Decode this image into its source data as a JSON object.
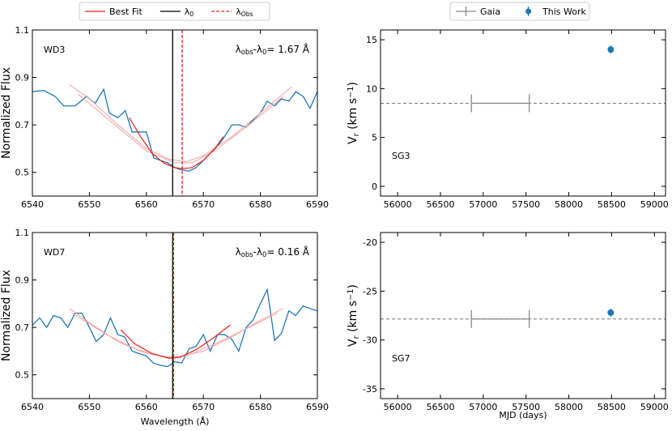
{
  "chart_data": [
    {
      "type": "line",
      "label": "WD3",
      "annotation": [
        {
          "t": "λ"
        },
        {
          "t": "obs",
          "pos": "sub"
        },
        {
          "t": "-λ"
        },
        {
          "t": "0",
          "pos": "sub"
        },
        {
          "t": "= 1.67 Å"
        }
      ],
      "ylabel": [
        {
          "t": "Normalized Flux"
        }
      ],
      "xlim": [
        6540,
        6590
      ],
      "xticks": [
        6540,
        6550,
        6560,
        6570,
        6580,
        6590
      ],
      "ylim": [
        0.4,
        1.1
      ],
      "yticks": [
        0.5,
        0.7,
        0.9,
        1.1
      ],
      "series": [
        {
          "color": "#1f77b4",
          "width": 1.3,
          "x": [
            6540,
            6542,
            6544,
            6545.5,
            6547.5,
            6549.5,
            6551,
            6552.5,
            6553.5,
            6555,
            6556.3,
            6557.5,
            6558.7,
            6560,
            6561.3,
            6562.5,
            6563.7,
            6565,
            6566.2,
            6567.5,
            6568.7,
            6570,
            6571.2,
            6572.5,
            6573.7,
            6575,
            6576.2,
            6577.5,
            6578.7,
            6580,
            6581.2,
            6582.5,
            6583.7,
            6585,
            6586.2,
            6587.5,
            6588.7,
            6590
          ],
          "values": [
            0.84,
            0.845,
            0.82,
            0.78,
            0.78,
            0.82,
            0.79,
            0.85,
            0.75,
            0.73,
            0.76,
            0.67,
            0.67,
            0.67,
            0.56,
            0.55,
            0.54,
            0.52,
            0.51,
            0.505,
            0.52,
            0.55,
            0.58,
            0.61,
            0.65,
            0.7,
            0.7,
            0.69,
            0.72,
            0.75,
            0.8,
            0.78,
            0.81,
            0.8,
            0.84,
            0.82,
            0.77,
            0.84
          ]
        },
        {
          "color": "#f4a3a3",
          "width": 1,
          "x": [
            6546.5,
            6550,
            6555,
            6560,
            6564,
            6567,
            6570,
            6575,
            6580,
            6585.5
          ],
          "values": [
            0.87,
            0.81,
            0.7,
            0.6,
            0.555,
            0.545,
            0.57,
            0.65,
            0.75,
            0.86
          ]
        },
        {
          "color": "#f4a3a3",
          "width": 1,
          "x": [
            6548,
            6555,
            6560,
            6565,
            6568,
            6572,
            6578,
            6584
          ],
          "values": [
            0.83,
            0.69,
            0.59,
            0.54,
            0.54,
            0.59,
            0.7,
            0.82
          ]
        },
        {
          "name": "Best Fit",
          "color": "#e8201c",
          "width": 1.2,
          "x": [
            6557,
            6559,
            6561,
            6563,
            6565,
            6566.5,
            6568,
            6570,
            6572,
            6573.5
          ],
          "values": [
            0.73,
            0.65,
            0.58,
            0.54,
            0.52,
            0.515,
            0.52,
            0.55,
            0.6,
            0.65
          ]
        }
      ],
      "vlines": [
        {
          "x": 6564.61,
          "color": "#000000",
          "style": "solid",
          "label": [
            {
              "t": "λ"
            },
            {
              "t": "0",
              "pos": "sub"
            }
          ]
        },
        {
          "x": 6566.28,
          "color": "#e8201c",
          "style": "dashed",
          "label": [
            {
              "t": "λ"
            },
            {
              "t": "Obs",
              "pos": "sub"
            }
          ]
        }
      ]
    },
    {
      "type": "line",
      "label": "WD7",
      "annotation": [
        {
          "t": "λ"
        },
        {
          "t": "obs",
          "pos": "sub"
        },
        {
          "t": "-λ"
        },
        {
          "t": "0",
          "pos": "sub"
        },
        {
          "t": "= 0.16 Å"
        }
      ],
      "ylabel": [
        {
          "t": "Normalized Flux"
        }
      ],
      "xlabel": "Wavelength (Å)",
      "xlim": [
        6540,
        6590
      ],
      "xticks": [
        6540,
        6550,
        6560,
        6570,
        6580,
        6590
      ],
      "ylim": [
        0.4,
        1.1
      ],
      "yticks": [
        0.5,
        0.7,
        0.9,
        1.1
      ],
      "series": [
        {
          "color": "#1f77b4",
          "width": 1.3,
          "x": [
            6540,
            6541.3,
            6542.5,
            6543.7,
            6545,
            6546.2,
            6547.5,
            6548.7,
            6550,
            6551.2,
            6552.5,
            6553.7,
            6555,
            6556.2,
            6557.5,
            6558.7,
            6560,
            6561.2,
            6562.5,
            6563.7,
            6565,
            6566.2,
            6567.5,
            6568.7,
            6570,
            6571.2,
            6572.5,
            6573.7,
            6575,
            6576.2,
            6577.5,
            6578.7,
            6580,
            6581.2,
            6582.5,
            6583.7,
            6585,
            6586.2,
            6587.5,
            6588.7,
            6590
          ],
          "values": [
            0.71,
            0.74,
            0.7,
            0.75,
            0.74,
            0.7,
            0.76,
            0.76,
            0.7,
            0.64,
            0.67,
            0.74,
            0.67,
            0.66,
            0.6,
            0.59,
            0.58,
            0.55,
            0.54,
            0.535,
            0.555,
            0.55,
            0.61,
            0.62,
            0.67,
            0.6,
            0.67,
            0.67,
            0.65,
            0.6,
            0.7,
            0.73,
            0.8,
            0.86,
            0.645,
            0.675,
            0.77,
            0.75,
            0.79,
            0.78,
            0.77
          ]
        },
        {
          "color": "#f4a3a3",
          "width": 1,
          "x": [
            6546.5,
            6550,
            6555,
            6560,
            6565,
            6570,
            6575,
            6580,
            6584
          ],
          "values": [
            0.78,
            0.72,
            0.64,
            0.59,
            0.57,
            0.6,
            0.66,
            0.73,
            0.78
          ]
        },
        {
          "color": "#f4a3a3",
          "width": 1,
          "x": [
            6547,
            6553,
            6558,
            6563,
            6567,
            6572,
            6578,
            6583
          ],
          "values": [
            0.76,
            0.67,
            0.61,
            0.575,
            0.58,
            0.63,
            0.7,
            0.76
          ]
        },
        {
          "color": "#e8201c",
          "width": 1.2,
          "x": [
            6555.5,
            6558,
            6561,
            6564,
            6566,
            6569,
            6572,
            6574.7
          ],
          "values": [
            0.69,
            0.63,
            0.59,
            0.57,
            0.575,
            0.61,
            0.66,
            0.71
          ]
        }
      ],
      "vlines": [
        {
          "x": 6564.61,
          "color": "#000000",
          "style": "solid"
        },
        {
          "x": 6564.77,
          "color": "#e8201c",
          "style": "dashed"
        }
      ]
    },
    {
      "type": "scatter",
      "label": "SG3",
      "ylabel": [
        {
          "t": "V"
        },
        {
          "t": "r",
          "pos": "sub"
        },
        {
          "t": " (km s"
        },
        {
          "t": "−1",
          "pos": "sup"
        },
        {
          "t": ")"
        }
      ],
      "xlim": [
        55800,
        59130
      ],
      "xticks": [
        56000,
        56500,
        57000,
        57500,
        58000,
        58500,
        59000
      ],
      "ylim": [
        -1,
        16
      ],
      "yticks": [
        0,
        5,
        10,
        15
      ],
      "series": [
        {
          "name": "Gaia",
          "color": "#888888",
          "reference_line": true,
          "x": [
            57200
          ],
          "values": [
            8.5
          ],
          "xerr": [
            338
          ]
        },
        {
          "name": "This Work",
          "color": "#1f77b4",
          "x": [
            58490
          ],
          "values": [
            14.0
          ],
          "yerr": [
            0.4
          ]
        }
      ]
    },
    {
      "type": "scatter",
      "label": "SG7",
      "xlabel": "MJD (days)",
      "ylabel": [
        {
          "t": "V"
        },
        {
          "t": "r",
          "pos": "sub"
        },
        {
          "t": " (km s"
        },
        {
          "t": "−1",
          "pos": "sup"
        },
        {
          "t": ")"
        }
      ],
      "xlim": [
        55800,
        59130
      ],
      "xticks": [
        56000,
        56500,
        57000,
        57500,
        58000,
        58500,
        59000
      ],
      "ylim": [
        -36,
        -19
      ],
      "yticks": [
        -35,
        -30,
        -25,
        -20
      ],
      "series": [
        {
          "color": "#888888",
          "reference_line": true,
          "x": [
            57200
          ],
          "values": [
            -27.85
          ],
          "xerr": [
            338
          ]
        },
        {
          "color": "#1f77b4",
          "x": [
            58490
          ],
          "values": [
            -27.2
          ],
          "yerr": [
            0.4
          ]
        }
      ]
    }
  ]
}
